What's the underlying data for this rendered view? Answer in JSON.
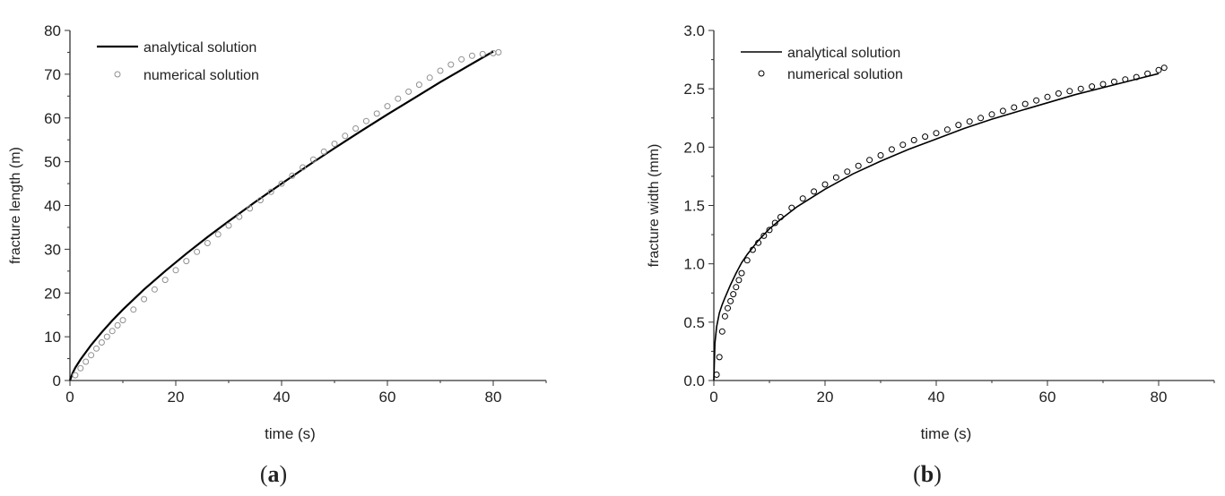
{
  "figure": {
    "caption_a": {
      "open": "(",
      "letter": "a",
      "close": ")"
    },
    "caption_b": {
      "open": "(",
      "letter": "b",
      "close": ")"
    }
  },
  "chart_data": [
    {
      "type": "line",
      "panel": "a",
      "title": "",
      "xlabel": "time (s)",
      "ylabel": "fracture length (m)",
      "xlim": [
        0,
        90
      ],
      "ylim": [
        0,
        80
      ],
      "xticks": [
        0,
        20,
        40,
        60,
        80
      ],
      "yticks": [
        0,
        10,
        20,
        30,
        40,
        50,
        60,
        70,
        80
      ],
      "grid": false,
      "legend_position": "top-left",
      "series": [
        {
          "name": "analytical solution",
          "style": "line",
          "color": "#000000",
          "x": [
            0,
            0.5,
            1,
            2,
            4,
            6,
            8,
            10,
            14,
            18,
            22,
            26,
            30,
            35,
            40,
            45,
            50,
            55,
            60,
            65,
            70,
            75,
            80
          ],
          "y": [
            0,
            1.7,
            2.9,
            4.8,
            8.1,
            11.0,
            13.7,
            16.2,
            20.8,
            25.0,
            29.0,
            32.8,
            36.4,
            40.8,
            45.0,
            49.1,
            53.1,
            57.0,
            60.8,
            64.5,
            68.2,
            71.7,
            75.2
          ]
        },
        {
          "name": "numerical solution",
          "style": "open-circle",
          "color": "#909090",
          "x": [
            1,
            2,
            3,
            4,
            5,
            6,
            7,
            8,
            9,
            10,
            12,
            14,
            16,
            18,
            20,
            22,
            24,
            26,
            28,
            30,
            32,
            34,
            36,
            38,
            40,
            42,
            44,
            46,
            48,
            50,
            52,
            54,
            56,
            58,
            60,
            62,
            64,
            66,
            68,
            70,
            72,
            74,
            76,
            78,
            80,
            81
          ],
          "y": [
            1.2,
            2.8,
            4.3,
            5.8,
            7.3,
            8.7,
            10.0,
            11.3,
            12.6,
            13.8,
            16.2,
            18.6,
            20.8,
            23.0,
            25.2,
            27.3,
            29.4,
            31.4,
            33.4,
            35.4,
            37.4,
            39.3,
            41.2,
            43.1,
            45.0,
            46.8,
            48.7,
            50.5,
            52.3,
            54.1,
            55.9,
            57.6,
            59.3,
            61.0,
            62.7,
            64.4,
            66.0,
            67.6,
            69.2,
            70.8,
            72.2,
            73.4,
            74.2,
            74.6,
            74.8,
            75.0
          ]
        }
      ]
    },
    {
      "type": "line",
      "panel": "b",
      "title": "",
      "xlabel": "time (s)",
      "ylabel": "fracture width (mm)",
      "xlim": [
        0,
        90
      ],
      "ylim": [
        0,
        3
      ],
      "xticks": [
        0,
        20,
        40,
        60,
        80
      ],
      "yticks": [
        0.0,
        0.5,
        1.0,
        1.5,
        2.0,
        2.5,
        3.0
      ],
      "grid": false,
      "legend_position": "top-left",
      "series": [
        {
          "name": "analytical solution",
          "style": "line",
          "color": "#000000",
          "x": [
            0,
            0.2,
            0.5,
            1,
            1.5,
            2,
            3,
            4,
            5,
            6,
            8,
            10,
            12,
            15,
            20,
            25,
            30,
            35,
            40,
            45,
            50,
            55,
            60,
            65,
            70,
            75,
            80
          ],
          "y": [
            0,
            0.32,
            0.46,
            0.58,
            0.65,
            0.71,
            0.82,
            0.92,
            1.01,
            1.08,
            1.2,
            1.3,
            1.38,
            1.49,
            1.64,
            1.77,
            1.88,
            1.98,
            2.07,
            2.16,
            2.24,
            2.31,
            2.38,
            2.45,
            2.51,
            2.57,
            2.63
          ]
        },
        {
          "name": "numerical solution",
          "style": "open-circle",
          "color": "#000000",
          "x": [
            0.5,
            1,
            1.5,
            2,
            2.5,
            3,
            3.5,
            4,
            4.5,
            5,
            6,
            7,
            8,
            9,
            10,
            11,
            12,
            14,
            16,
            18,
            20,
            22,
            24,
            26,
            28,
            30,
            32,
            34,
            36,
            38,
            40,
            42,
            44,
            46,
            48,
            50,
            52,
            54,
            56,
            58,
            60,
            62,
            64,
            66,
            68,
            70,
            72,
            74,
            76,
            78,
            80,
            81
          ],
          "y": [
            0.05,
            0.2,
            0.42,
            0.55,
            0.62,
            0.68,
            0.74,
            0.8,
            0.86,
            0.92,
            1.03,
            1.12,
            1.18,
            1.24,
            1.29,
            1.35,
            1.4,
            1.48,
            1.56,
            1.62,
            1.68,
            1.74,
            1.79,
            1.84,
            1.89,
            1.93,
            1.98,
            2.02,
            2.06,
            2.09,
            2.12,
            2.15,
            2.19,
            2.22,
            2.25,
            2.28,
            2.31,
            2.34,
            2.37,
            2.4,
            2.43,
            2.46,
            2.48,
            2.5,
            2.52,
            2.54,
            2.56,
            2.58,
            2.6,
            2.63,
            2.66,
            2.68
          ]
        }
      ]
    }
  ]
}
